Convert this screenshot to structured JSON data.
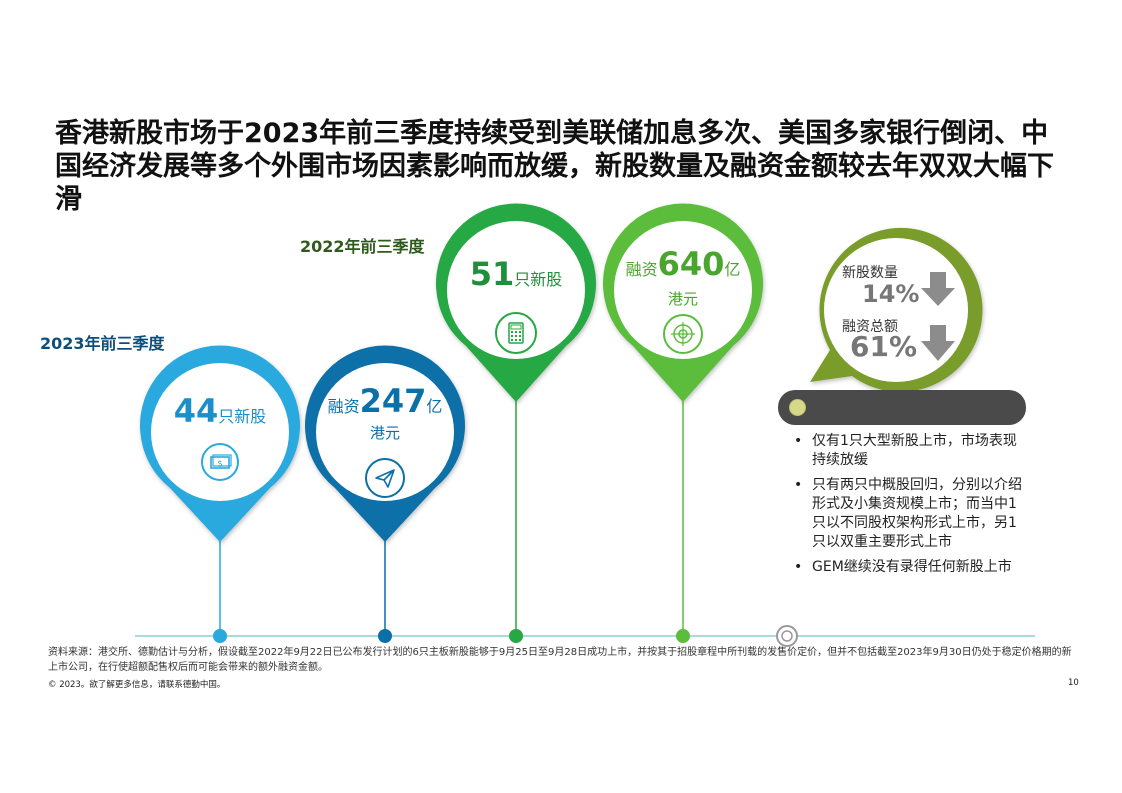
{
  "title": "香港新股市场于2023年前三季度持续受到美联储加息多次、美国多家银行倒闭、中国经济发展等多个外围市场因素影响而放缓，新股数量及融资金额较去年双双大幅下滑",
  "periods": {
    "p2023": "2023年前三季度",
    "p2022": "2022年前三季度"
  },
  "pins": {
    "a": {
      "value": "44",
      "unit": "只新股"
    },
    "b": {
      "prefix": "融资",
      "value": "247",
      "unit": "亿",
      "unit2": "港元"
    },
    "c": {
      "value": "51",
      "unit": "只新股"
    },
    "d": {
      "prefix": "融资",
      "value": "640",
      "unit": "亿",
      "unit2": "港元"
    }
  },
  "change": {
    "count_label": "新股数量",
    "count_pct": "14%",
    "amount_label": "融资总额",
    "amount_pct": "61%"
  },
  "bullets": [
    "仅有1只大型新股上市，市场表现持续放缓",
    "只有两只中概股回归，分别以介绍形式及小集资规模上市；而当中1只以不同股权架构形式上市，另1只以双重主要形式上市",
    "GEM继续没有录得任何新股上市"
  ],
  "footnote": "资料来源：港交所、德勤估计与分析，假设截至2022年9月22日已公布发行计划的6只主板新股能够于9月25日至9月28日成功上市，并按其于招股章程中所刊载的发售价定价，但并不包括截至2023年9月30日仍处于稳定价格期的新上市公司，在行使超额配售权后而可能会带来的额外融资金额。",
  "copyright": "© 2023。欲了解更多信息，请联系德勤中国。",
  "page_number": "10",
  "colors": {
    "pin_light_blue": "#29a9df",
    "pin_dark_blue": "#0b6fa8",
    "pin_green": "#26a844",
    "pin_light_green": "#5cbd3c",
    "change_green": "#7a9c2c",
    "timeline": "#8ccfd1"
  },
  "icons": {
    "a": "money-icon",
    "b": "paper-plane-icon",
    "c": "calculator-icon",
    "d": "target-icon"
  }
}
